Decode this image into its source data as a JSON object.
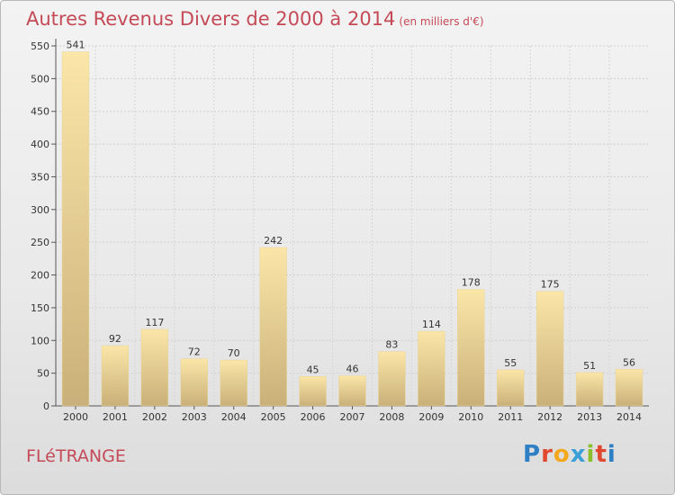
{
  "header": {
    "title": "Autres Revenus Divers de 2000 à 2014",
    "subtitle": "(en milliers d'€)"
  },
  "footer": {
    "place": "FLéTRANGE",
    "logo": {
      "letters": [
        "P",
        "r",
        "o",
        "x",
        "i",
        "t",
        "i"
      ],
      "colors": [
        "#2e7fc4",
        "#e0482f",
        "#f4a81d",
        "#3aa0d8",
        "#8cbf2b",
        "#e0482f",
        "#2e7fc4"
      ]
    }
  },
  "chart_data": {
    "type": "bar",
    "categories": [
      "2000",
      "2001",
      "2002",
      "2003",
      "2004",
      "2005",
      "2006",
      "2007",
      "2008",
      "2009",
      "2010",
      "2011",
      "2012",
      "2013",
      "2014"
    ],
    "values": [
      541,
      92,
      117,
      72,
      70,
      242,
      45,
      46,
      83,
      114,
      178,
      55,
      175,
      51,
      56
    ],
    "ylim": [
      0,
      550
    ],
    "yticks": [
      0,
      50,
      100,
      150,
      200,
      250,
      300,
      350,
      400,
      450,
      500,
      550
    ],
    "grid": true,
    "bar_color_top": "#fbe6a8",
    "bar_color_bottom": "#c9b079"
  }
}
